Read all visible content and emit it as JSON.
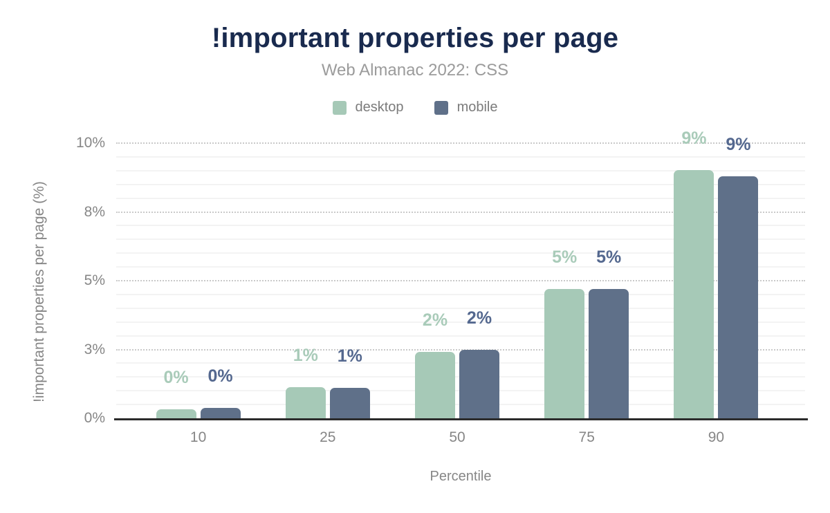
{
  "chart_data": {
    "type": "bar",
    "title": "!important properties per page",
    "subtitle": "Web Almanac 2022: CSS",
    "xlabel": "Percentile",
    "ylabel": "!important properties per page (%)",
    "categories": [
      "10",
      "25",
      "50",
      "75",
      "90"
    ],
    "series": [
      {
        "name": "desktop",
        "color": "#a6c9b7",
        "label_color": "#a9cbb9",
        "values": [
          0.33,
          1.12,
          2.42,
          4.71,
          9.03
        ],
        "labels": [
          "0%",
          "1%",
          "2%",
          "5%",
          "9%"
        ]
      },
      {
        "name": "mobile",
        "color": "#5f7089",
        "label_color": "#54688f",
        "values": [
          0.37,
          1.1,
          2.5,
          4.71,
          8.8
        ],
        "labels": [
          "0%",
          "1%",
          "2%",
          "5%",
          "9%"
        ]
      }
    ],
    "ylim": [
      0,
      10
    ],
    "y_major_ticks": [
      {
        "value": 0,
        "label": "0%"
      },
      {
        "value": 2.5,
        "label": "3%"
      },
      {
        "value": 5,
        "label": "5%"
      },
      {
        "value": 7.5,
        "label": "8%"
      },
      {
        "value": 10,
        "label": "10%"
      }
    ],
    "y_minor_step": 0.5,
    "grid": true,
    "legend_position": "top",
    "colors": {
      "title": "#192a4e",
      "subtitle": "#9b9b9b",
      "axis_text": "#868686",
      "axis_line": "#2b2b2b",
      "grid_major": "#c9c9c9",
      "grid_minor": "#f3f3f3"
    }
  }
}
